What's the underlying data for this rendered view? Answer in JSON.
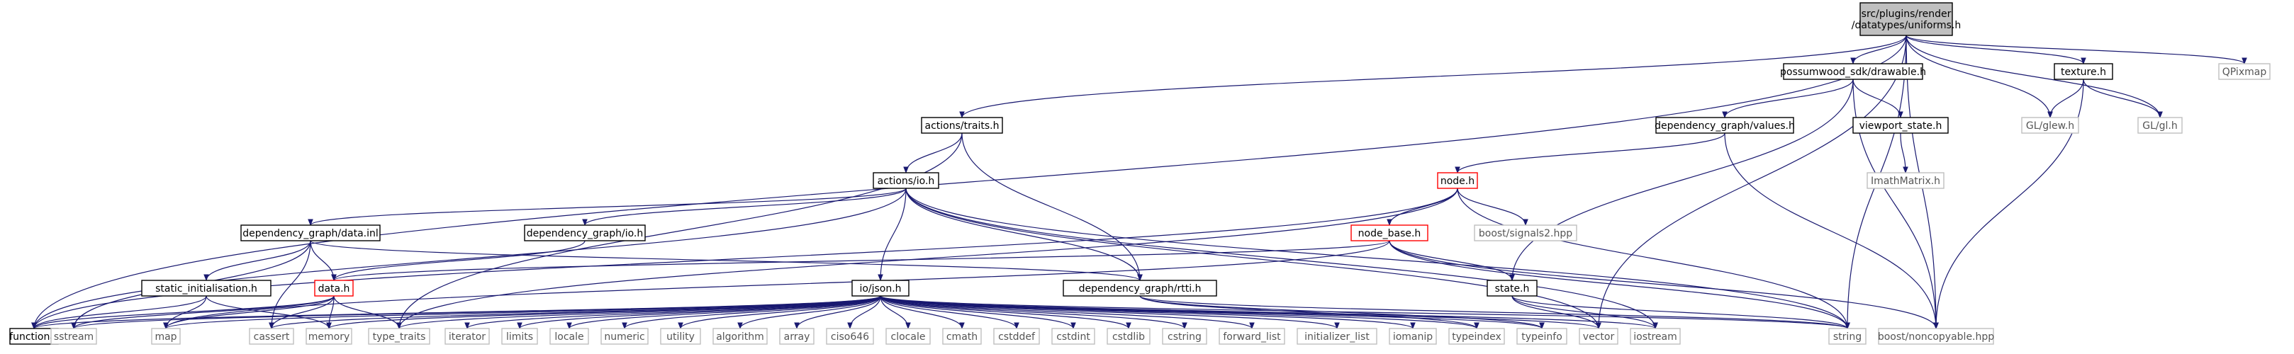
{
  "colors": {
    "edge": "#191970",
    "root_fill": "#bfbfbf",
    "node_border": "#000000",
    "red_border": "#ff0000",
    "external_border": "#bfbfbf",
    "external_text": "#555555"
  },
  "nodes": [
    {
      "id": "root",
      "label": "src/plugins/render\n/datatypes/uniforms.h",
      "kind": "root"
    },
    {
      "id": "functional",
      "label": "functional",
      "kind": "normal"
    },
    {
      "id": "actions_traits",
      "label": "actions/traits.h",
      "kind": "normal"
    },
    {
      "id": "actions_io",
      "label": "actions/io.h",
      "kind": "normal"
    },
    {
      "id": "dg_data_inl",
      "label": "dependency_graph/data.inl",
      "kind": "normal"
    },
    {
      "id": "dg_io",
      "label": "dependency_graph/io.h",
      "kind": "normal"
    },
    {
      "id": "static_init",
      "label": "static_initialisation.h",
      "kind": "normal"
    },
    {
      "id": "data_h",
      "label": "data.h",
      "kind": "red"
    },
    {
      "id": "io_json",
      "label": "io/json.h",
      "kind": "normal"
    },
    {
      "id": "dg_rtti",
      "label": "dependency_graph/rtti.h",
      "kind": "normal"
    },
    {
      "id": "possumwood_drawable",
      "label": "possumwood_sdk/drawable.h",
      "kind": "normal"
    },
    {
      "id": "dg_values",
      "label": "dependency_graph/values.h",
      "kind": "normal"
    },
    {
      "id": "viewport_state",
      "label": "viewport_state.h",
      "kind": "normal"
    },
    {
      "id": "imathmatrix",
      "label": "ImathMatrix.h",
      "kind": "external"
    },
    {
      "id": "node_h",
      "label": "node.h",
      "kind": "red"
    },
    {
      "id": "node_base",
      "label": "node_base.h",
      "kind": "red"
    },
    {
      "id": "boost_signals2",
      "label": "boost/signals2.hpp",
      "kind": "external"
    },
    {
      "id": "state_h",
      "label": "state.h",
      "kind": "normal"
    },
    {
      "id": "texture_h",
      "label": "texture.h",
      "kind": "normal"
    },
    {
      "id": "gl_glew",
      "label": "GL/glew.h",
      "kind": "external"
    },
    {
      "id": "gl_gl",
      "label": "GL/gl.h",
      "kind": "external"
    },
    {
      "id": "qpixmap",
      "label": "QPixmap",
      "kind": "external"
    },
    {
      "id": "sstream",
      "label": "sstream",
      "kind": "external"
    },
    {
      "id": "map",
      "label": "map",
      "kind": "external"
    },
    {
      "id": "cassert",
      "label": "cassert",
      "kind": "external"
    },
    {
      "id": "memory",
      "label": "memory",
      "kind": "external"
    },
    {
      "id": "type_traits",
      "label": "type_traits",
      "kind": "external"
    },
    {
      "id": "iterator",
      "label": "iterator",
      "kind": "external"
    },
    {
      "id": "limits",
      "label": "limits",
      "kind": "external"
    },
    {
      "id": "locale",
      "label": "locale",
      "kind": "external"
    },
    {
      "id": "numeric",
      "label": "numeric",
      "kind": "external"
    },
    {
      "id": "utility",
      "label": "utility",
      "kind": "external"
    },
    {
      "id": "algorithm",
      "label": "algorithm",
      "kind": "external"
    },
    {
      "id": "array",
      "label": "array",
      "kind": "external"
    },
    {
      "id": "ciso646",
      "label": "ciso646",
      "kind": "external"
    },
    {
      "id": "clocale",
      "label": "clocale",
      "kind": "external"
    },
    {
      "id": "cmath",
      "label": "cmath",
      "kind": "external"
    },
    {
      "id": "cstddef",
      "label": "cstddef",
      "kind": "external"
    },
    {
      "id": "cstdint",
      "label": "cstdint",
      "kind": "external"
    },
    {
      "id": "cstdlib",
      "label": "cstdlib",
      "kind": "external"
    },
    {
      "id": "cstring",
      "label": "cstring",
      "kind": "external"
    },
    {
      "id": "forward_list",
      "label": "forward_list",
      "kind": "external"
    },
    {
      "id": "initializer_list",
      "label": "initializer_list",
      "kind": "external"
    },
    {
      "id": "iomanip",
      "label": "iomanip",
      "kind": "external"
    },
    {
      "id": "typeindex",
      "label": "typeindex",
      "kind": "external"
    },
    {
      "id": "typeinfo",
      "label": "typeinfo",
      "kind": "external"
    },
    {
      "id": "vector",
      "label": "vector",
      "kind": "external"
    },
    {
      "id": "iostream",
      "label": "iostream",
      "kind": "external"
    },
    {
      "id": "string",
      "label": "string",
      "kind": "external"
    },
    {
      "id": "boost_noncopyable",
      "label": "boost/noncopyable.hpp",
      "kind": "external"
    }
  ],
  "edges": [
    [
      "root",
      "functional"
    ],
    [
      "root",
      "actions_traits"
    ],
    [
      "root",
      "possumwood_drawable"
    ],
    [
      "root",
      "texture_h"
    ],
    [
      "root",
      "qpixmap"
    ],
    [
      "root",
      "gl_glew"
    ],
    [
      "root",
      "gl_gl"
    ],
    [
      "root",
      "vector"
    ],
    [
      "root",
      "string"
    ],
    [
      "root",
      "boost_noncopyable"
    ],
    [
      "actions_traits",
      "actions_io"
    ],
    [
      "actions_traits",
      "dg_rtti"
    ],
    [
      "actions_traits",
      "type_traits"
    ],
    [
      "actions_io",
      "dg_data_inl"
    ],
    [
      "actions_io",
      "dg_io"
    ],
    [
      "actions_io",
      "io_json"
    ],
    [
      "actions_io",
      "dg_rtti"
    ],
    [
      "actions_io",
      "functional"
    ],
    [
      "actions_io",
      "iostream"
    ],
    [
      "actions_io",
      "string"
    ],
    [
      "actions_io",
      "vector"
    ],
    [
      "dg_data_inl",
      "static_init"
    ],
    [
      "dg_data_inl",
      "data_h"
    ],
    [
      "dg_data_inl",
      "dg_rtti"
    ],
    [
      "dg_data_inl",
      "sstream"
    ],
    [
      "dg_data_inl",
      "cassert"
    ],
    [
      "dg_io",
      "data_h"
    ],
    [
      "static_init",
      "functional"
    ],
    [
      "static_init",
      "map"
    ],
    [
      "static_init",
      "memory"
    ],
    [
      "data_h",
      "functional"
    ],
    [
      "data_h",
      "map"
    ],
    [
      "data_h",
      "cassert"
    ],
    [
      "data_h",
      "memory"
    ],
    [
      "data_h",
      "type_traits"
    ],
    [
      "data_h",
      "sstream"
    ],
    [
      "io_json",
      "sstream"
    ],
    [
      "io_json",
      "map"
    ],
    [
      "io_json",
      "cassert"
    ],
    [
      "io_json",
      "memory"
    ],
    [
      "io_json",
      "type_traits"
    ],
    [
      "io_json",
      "iterator"
    ],
    [
      "io_json",
      "limits"
    ],
    [
      "io_json",
      "locale"
    ],
    [
      "io_json",
      "numeric"
    ],
    [
      "io_json",
      "utility"
    ],
    [
      "io_json",
      "algorithm"
    ],
    [
      "io_json",
      "array"
    ],
    [
      "io_json",
      "ciso646"
    ],
    [
      "io_json",
      "clocale"
    ],
    [
      "io_json",
      "cmath"
    ],
    [
      "io_json",
      "cstddef"
    ],
    [
      "io_json",
      "cstdint"
    ],
    [
      "io_json",
      "cstdlib"
    ],
    [
      "io_json",
      "cstring"
    ],
    [
      "io_json",
      "forward_list"
    ],
    [
      "io_json",
      "initializer_list"
    ],
    [
      "io_json",
      "iomanip"
    ],
    [
      "io_json",
      "typeindex"
    ],
    [
      "io_json",
      "typeinfo"
    ],
    [
      "io_json",
      "vector"
    ],
    [
      "io_json",
      "iostream"
    ],
    [
      "io_json",
      "string"
    ],
    [
      "io_json",
      "functional"
    ],
    [
      "dg_rtti",
      "string"
    ],
    [
      "dg_rtti",
      "typeinfo"
    ],
    [
      "dg_rtti",
      "typeindex"
    ],
    [
      "possumwood_drawable",
      "dg_values"
    ],
    [
      "possumwood_drawable",
      "viewport_state"
    ],
    [
      "possumwood_drawable",
      "state_h"
    ],
    [
      "possumwood_drawable",
      "boost_noncopyable"
    ],
    [
      "dg_values",
      "node_h"
    ],
    [
      "dg_values",
      "boost_noncopyable"
    ],
    [
      "viewport_state",
      "imathmatrix"
    ],
    [
      "node_h",
      "node_base"
    ],
    [
      "node_h",
      "boost_signals2"
    ],
    [
      "node_h",
      "functional"
    ],
    [
      "node_h",
      "string"
    ],
    [
      "node_h",
      "type_traits"
    ],
    [
      "node_base",
      "state_h"
    ],
    [
      "node_base",
      "data_h"
    ],
    [
      "node_base",
      "map"
    ],
    [
      "node_base",
      "string"
    ],
    [
      "node_base",
      "boost_noncopyable"
    ],
    [
      "state_h",
      "vector"
    ],
    [
      "state_h",
      "string"
    ],
    [
      "state_h",
      "iostream"
    ],
    [
      "texture_h",
      "gl_glew"
    ],
    [
      "texture_h",
      "gl_gl"
    ],
    [
      "texture_h",
      "boost_noncopyable"
    ]
  ]
}
